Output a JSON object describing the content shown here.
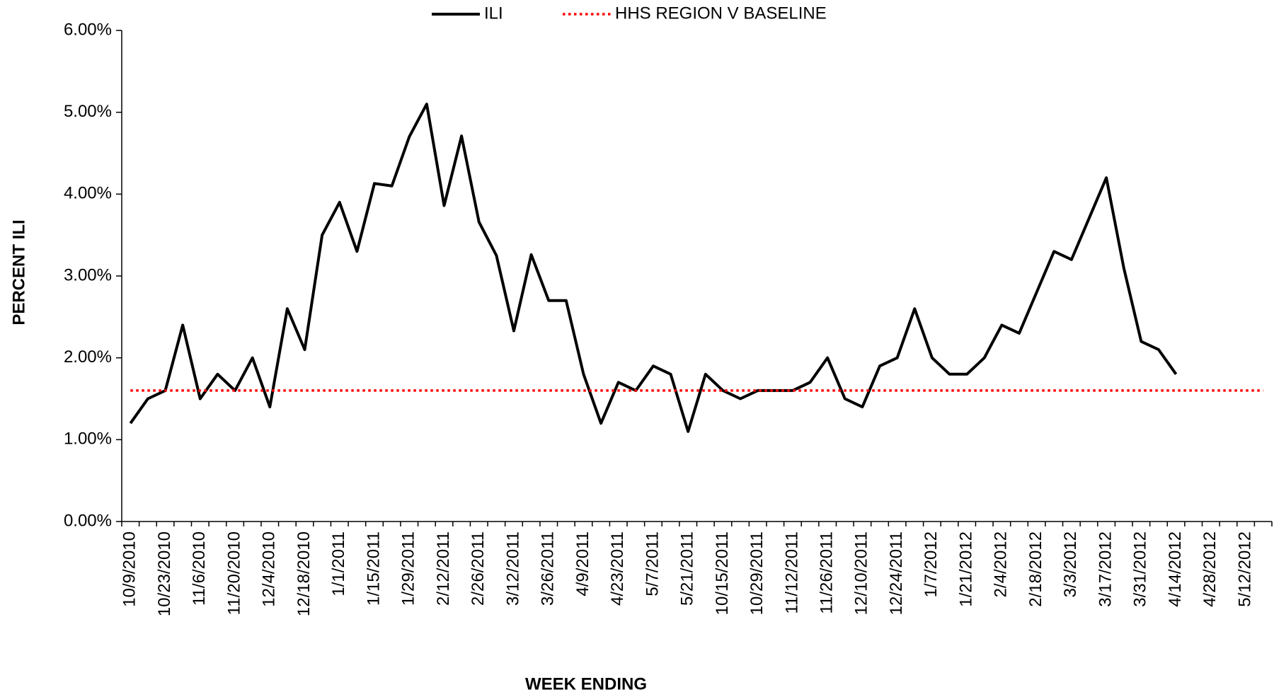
{
  "chart_data": {
    "type": "line",
    "y_label": "PERCENT ILI",
    "x_label": "WEEK ENDING",
    "categories": [
      "10/9/2010",
      null,
      "10/23/2010",
      null,
      "11/6/2010",
      null,
      "11/20/2010",
      null,
      "12/4/2010",
      null,
      "12/18/2010",
      null,
      "1/1/2011",
      null,
      "1/15/2011",
      null,
      "1/29/2011",
      null,
      "2/12/2011",
      null,
      "2/26/2011",
      null,
      "3/12/2011",
      null,
      "3/26/2011",
      null,
      "4/9/2011",
      null,
      "4/23/2011",
      null,
      "5/7/2011",
      null,
      "5/21/2011",
      null,
      "10/15/2011",
      null,
      "10/29/2011",
      null,
      "11/12/2011",
      null,
      "11/26/2011",
      null,
      "12/10/2011",
      null,
      "12/24/2011",
      null,
      "1/7/2012",
      null,
      "1/21/2012",
      null,
      "2/4/2012",
      null,
      "2/18/2012",
      null,
      "3/3/2012",
      null,
      "3/17/2012",
      null,
      "3/31/2012",
      null,
      "4/14/2012",
      null,
      "4/28/2012",
      null,
      "5/12/2012",
      null
    ],
    "series": [
      {
        "name": "ILI",
        "color": "#000000",
        "dash": "solid",
        "values": [
          1.2,
          1.5,
          1.6,
          2.4,
          1.5,
          1.8,
          1.6,
          2.0,
          1.4,
          2.6,
          2.1,
          3.5,
          3.9,
          3.3,
          4.13,
          4.1,
          4.7,
          5.1,
          3.86,
          4.71,
          3.66,
          3.25,
          2.33,
          3.26,
          2.7,
          2.7,
          1.8,
          1.2,
          1.7,
          1.6,
          1.9,
          1.8,
          1.1,
          1.8,
          1.6,
          1.5,
          1.6,
          1.6,
          1.6,
          1.7,
          2.0,
          1.5,
          1.4,
          1.9,
          2.0,
          2.6,
          2.0,
          1.8,
          1.8,
          2.0,
          2.4,
          2.3,
          2.8,
          3.3,
          3.2,
          3.7,
          4.2,
          3.1,
          2.2,
          2.1,
          1.8,
          null,
          null,
          null,
          null,
          null
        ]
      },
      {
        "name": "HHS REGION V BASELINE",
        "color": "#ff0000",
        "dash": "dotted",
        "values": [
          1.6,
          1.6,
          1.6,
          1.6,
          1.6,
          1.6,
          1.6,
          1.6,
          1.6,
          1.6,
          1.6,
          1.6,
          1.6,
          1.6,
          1.6,
          1.6,
          1.6,
          1.6,
          1.6,
          1.6,
          1.6,
          1.6,
          1.6,
          1.6,
          1.6,
          1.6,
          1.6,
          1.6,
          1.6,
          1.6,
          1.6,
          1.6,
          1.6,
          1.6,
          1.6,
          1.6,
          1.6,
          1.6,
          1.6,
          1.6,
          1.6,
          1.6,
          1.6,
          1.6,
          1.6,
          1.6,
          1.6,
          1.6,
          1.6,
          1.6,
          1.6,
          1.6,
          1.6,
          1.6,
          1.6,
          1.6,
          1.6,
          1.6,
          1.6,
          1.6,
          1.6,
          1.6,
          1.6,
          1.6,
          1.6,
          1.6
        ]
      }
    ],
    "ylim": [
      0,
      6
    ],
    "yticks": [
      {
        "value": 0,
        "label": "0.00%"
      },
      {
        "value": 1,
        "label": "1.00%"
      },
      {
        "value": 2,
        "label": "2.00%"
      },
      {
        "value": 3,
        "label": "3.00%"
      },
      {
        "value": 4,
        "label": "4.00%"
      },
      {
        "value": 5,
        "label": "5.00%"
      },
      {
        "value": 6,
        "label": "6.00%"
      }
    ],
    "grid": false,
    "legend": "top"
  }
}
